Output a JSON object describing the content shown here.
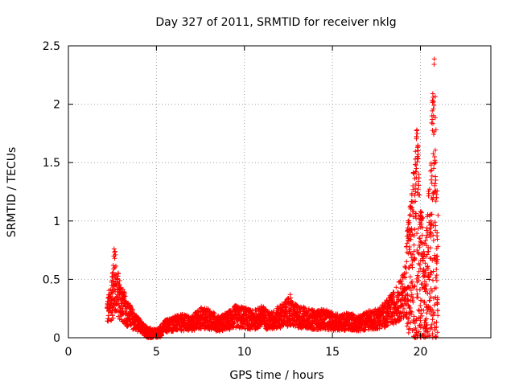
{
  "chart_data": {
    "type": "scatter",
    "title": "Day 327 of 2011, SRMTID for receiver nklg",
    "xlabel": "GPS time / hours",
    "ylabel": "SRMTID / TECUs",
    "xlim": [
      0,
      24
    ],
    "ylim": [
      0,
      2.5
    ],
    "x_ticks": [
      0,
      5,
      10,
      15,
      20
    ],
    "x_tick_labels": [
      "0",
      "5",
      "10",
      "15",
      "20"
    ],
    "y_ticks": [
      0,
      0.5,
      1,
      1.5,
      2,
      2.5
    ],
    "y_tick_labels": [
      "0",
      "0.5",
      "1",
      "1.5",
      "2",
      "2.5"
    ],
    "grid": true,
    "marker": "plus",
    "series": [
      {
        "name": "SRMTID",
        "color": "#ff0000",
        "trend": [
          [
            2.2,
            0.22
          ],
          [
            2.5,
            0.35
          ],
          [
            2.7,
            0.42
          ],
          [
            3.0,
            0.3
          ],
          [
            3.3,
            0.22
          ],
          [
            3.7,
            0.15
          ],
          [
            4.2,
            0.08
          ],
          [
            4.7,
            0.03
          ],
          [
            5.0,
            0.02
          ],
          [
            5.5,
            0.1
          ],
          [
            6.0,
            0.12
          ],
          [
            6.5,
            0.13
          ],
          [
            7.0,
            0.12
          ],
          [
            7.5,
            0.17
          ],
          [
            8.0,
            0.16
          ],
          [
            8.5,
            0.12
          ],
          [
            9.0,
            0.14
          ],
          [
            9.5,
            0.18
          ],
          [
            10.0,
            0.17
          ],
          [
            10.5,
            0.15
          ],
          [
            11.0,
            0.18
          ],
          [
            11.5,
            0.14
          ],
          [
            12.0,
            0.18
          ],
          [
            12.5,
            0.22
          ],
          [
            13.0,
            0.18
          ],
          [
            13.5,
            0.17
          ],
          [
            14.0,
            0.15
          ],
          [
            14.5,
            0.16
          ],
          [
            15.0,
            0.14
          ],
          [
            15.5,
            0.13
          ],
          [
            16.0,
            0.14
          ],
          [
            16.5,
            0.12
          ],
          [
            17.0,
            0.15
          ],
          [
            17.5,
            0.16
          ],
          [
            18.0,
            0.2
          ],
          [
            18.5,
            0.26
          ],
          [
            19.0,
            0.35
          ],
          [
            19.5,
            0.6
          ],
          [
            19.8,
            0.9
          ],
          [
            20.0,
            0.55
          ],
          [
            20.3,
            0.4
          ],
          [
            20.6,
            0.8
          ],
          [
            20.8,
            1.2
          ],
          [
            21.0,
            0.5
          ]
        ],
        "peaks": [
          [
            2.6,
            0.76
          ],
          [
            2.65,
            0.74
          ],
          [
            2.55,
            0.62
          ],
          [
            2.5,
            0.55
          ],
          [
            2.9,
            0.45
          ],
          [
            12.6,
            0.37
          ],
          [
            19.3,
            1.0
          ],
          [
            19.4,
            0.93
          ],
          [
            19.7,
            1.28
          ],
          [
            19.75,
            1.48
          ],
          [
            19.8,
            1.78
          ],
          [
            19.85,
            1.6
          ],
          [
            19.9,
            1.4
          ],
          [
            20.0,
            1.05
          ],
          [
            20.7,
            2.09
          ],
          [
            20.75,
            2.02
          ],
          [
            20.65,
            1.9
          ],
          [
            20.8,
            1.55
          ],
          [
            20.85,
            1.38
          ],
          [
            20.9,
            1.23
          ],
          [
            20.6,
            1.0
          ],
          [
            20.95,
            0.7
          ]
        ]
      }
    ]
  }
}
